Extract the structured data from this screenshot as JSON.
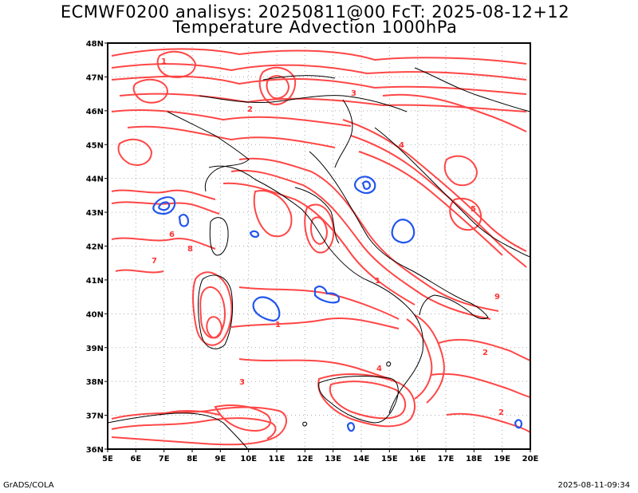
{
  "header": {
    "line1": "ECMWF0200 analisys: 20250811@00 FcT: 2025-08-12+12",
    "line2": "Temperature Advection 1000hPa"
  },
  "footer": {
    "left": "GrADS/COLA",
    "right": "2025-08-11-09:34"
  },
  "map": {
    "lon_labels": [
      "5E",
      "6E",
      "7E",
      "8E",
      "9E",
      "10E",
      "11E",
      "12E",
      "13E",
      "14E",
      "15E",
      "16E",
      "17E",
      "18E",
      "19E",
      "20E"
    ],
    "lat_labels": [
      "48N",
      "47N",
      "46N",
      "45N",
      "44N",
      "43N",
      "42N",
      "41N",
      "40N",
      "39N",
      "38N",
      "37N",
      "36N"
    ],
    "lon_range": [
      5,
      20
    ],
    "lat_range": [
      36,
      48
    ],
    "grid": true,
    "colors": {
      "positive_contours": "#ff3333",
      "negative_contours": "#2255ee",
      "coastline": "#000000",
      "grid": "#aaaaaa"
    },
    "contour_labels": [
      "1",
      "2",
      "3",
      "4",
      "5",
      "6",
      "7",
      "8",
      "9",
      "1",
      "2",
      "3",
      "4",
      "1",
      "2"
    ]
  }
}
